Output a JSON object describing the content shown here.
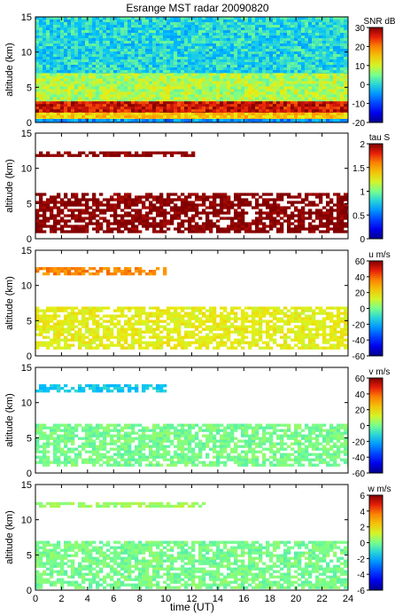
{
  "figure": {
    "title": "Esrange MST radar 20090820",
    "xlabel": "time (UT)"
  },
  "chart_data": [
    {
      "type": "heatmap",
      "panel": "snr",
      "ylabel": "altitude (km)",
      "xlim": [
        0,
        24
      ],
      "ylim": [
        0,
        15
      ],
      "x_ticks": [
        0,
        2,
        4,
        6,
        8,
        10,
        12,
        14,
        16,
        18,
        20,
        22,
        24
      ],
      "y_ticks": [
        0,
        5,
        10,
        15
      ],
      "colorbar": {
        "label": "SNR dB",
        "range": [
          -20,
          30
        ],
        "ticks": [
          30,
          20,
          10,
          0,
          -10,
          -20
        ]
      },
      "layers": [
        {
          "alt": [
            10.5,
            11.4
          ],
          "value": 18,
          "note_hidden": true
        },
        {
          "alt": [
            7.0,
            15.0
          ],
          "value": 0
        },
        {
          "alt": [
            3.0,
            7.0
          ],
          "value": 8
        },
        {
          "alt": [
            1.4,
            3.0
          ],
          "value": 26
        },
        {
          "alt": [
            0.5,
            1.4
          ],
          "value": 15
        },
        {
          "alt": [
            0.0,
            0.5
          ],
          "value": -5
        }
      ]
    },
    {
      "type": "heatmap",
      "panel": "tau",
      "ylabel": "altitude (km)",
      "xlim": [
        0,
        24
      ],
      "ylim": [
        0,
        15
      ],
      "x_ticks": [
        0,
        2,
        4,
        6,
        8,
        10,
        12,
        14,
        16,
        18,
        20,
        22,
        24
      ],
      "y_ticks": [
        0,
        5,
        10,
        15
      ],
      "colorbar": {
        "label": "tau S",
        "range": [
          0,
          2
        ],
        "ticks": [
          2,
          1.5,
          1,
          0.5,
          0
        ]
      },
      "layers": [
        {
          "alt": [
            11.8,
            12.4
          ],
          "t": [
            0,
            12
          ],
          "value": 2.0
        },
        {
          "alt": [
            1.2,
            6.5
          ],
          "t": [
            0,
            24
          ],
          "value": 2.0
        }
      ]
    },
    {
      "type": "heatmap",
      "panel": "u",
      "ylabel": "altitude (km)",
      "xlim": [
        0,
        24
      ],
      "ylim": [
        0,
        15
      ],
      "x_ticks": [
        0,
        2,
        4,
        6,
        8,
        10,
        12,
        14,
        16,
        18,
        20,
        22,
        24
      ],
      "y_ticks": [
        0,
        5,
        10,
        15
      ],
      "colorbar": {
        "label": "u m/s",
        "range": [
          -60,
          60
        ],
        "ticks": [
          60,
          40,
          20,
          0,
          -20,
          -40,
          -60
        ]
      },
      "layers": [
        {
          "alt": [
            11.8,
            12.6
          ],
          "t": [
            0,
            10
          ],
          "value": 35
        },
        {
          "alt": [
            1.0,
            7.0
          ],
          "t": [
            0,
            24
          ],
          "value": 15
        }
      ]
    },
    {
      "type": "heatmap",
      "panel": "v",
      "ylabel": "altitude (km)",
      "xlim": [
        0,
        24
      ],
      "ylim": [
        0,
        15
      ],
      "x_ticks": [
        0,
        2,
        4,
        6,
        8,
        10,
        12,
        14,
        16,
        18,
        20,
        22,
        24
      ],
      "y_ticks": [
        0,
        5,
        10,
        15
      ],
      "colorbar": {
        "label": "v m/s",
        "range": [
          -60,
          60
        ],
        "ticks": [
          60,
          40,
          20,
          0,
          -20,
          -40,
          -60
        ]
      },
      "layers": [
        {
          "alt": [
            11.8,
            12.6
          ],
          "t": [
            0,
            10
          ],
          "value": -15
        },
        {
          "alt": [
            1.0,
            7.0
          ],
          "t": [
            0,
            24
          ],
          "value": 0
        }
      ]
    },
    {
      "type": "heatmap",
      "panel": "w",
      "ylabel": "altitude (km)",
      "xlim": [
        0,
        24
      ],
      "ylim": [
        0,
        15
      ],
      "x_ticks": [
        0,
        2,
        4,
        6,
        8,
        10,
        12,
        14,
        16,
        18,
        20,
        22,
        24
      ],
      "y_ticks": [
        0,
        5,
        10,
        15
      ],
      "colorbar": {
        "label": "w m/s",
        "range": [
          -6,
          6
        ],
        "ticks": [
          6,
          4,
          2,
          0,
          -2,
          -4,
          -6
        ]
      },
      "layers": [
        {
          "alt": [
            11.8,
            12.5
          ],
          "t": [
            0,
            13
          ],
          "value": 0.5
        },
        {
          "alt": [
            0.5,
            7.0
          ],
          "t": [
            0,
            24
          ],
          "value": 0
        }
      ]
    }
  ]
}
